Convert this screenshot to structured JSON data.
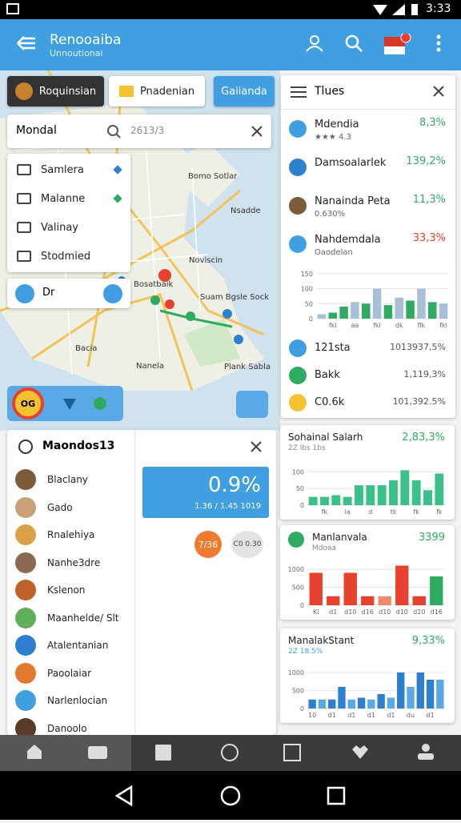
{
  "status": {
    "time": "3:33"
  },
  "appbar": {
    "title": "Renooaiba",
    "subtitle": "Unnoutionai"
  },
  "tabs": [
    "Roquinsian",
    "Pnadenian",
    "Gaiianda"
  ],
  "search": {
    "label": "Mondal",
    "query": "2613/3"
  },
  "menu": [
    "Samlera",
    "Malanne",
    "Valinay",
    "Stodmied"
  ],
  "tool_label": "Dr",
  "map_labels": [
    "Bomo Sotlar",
    "Nsadde",
    "Noviscin",
    "Bosatbaik",
    "Suam Bgsle Sock",
    "Nanela",
    "Bacia",
    "Plank Sabla"
  ],
  "map_control": "OG",
  "places": {
    "title": "Maondos13",
    "items": [
      "Blaclany",
      "Gado",
      "Rnalehiya",
      "Nanhe3dre",
      "Kslenon",
      "Maanhelde/ Slt",
      "Atalentanian",
      "Paoolaiar",
      "Narlenlocian",
      "Danoolo"
    ]
  },
  "stat_card": {
    "value": "0.9%",
    "sub": "1.36 / 1.45 1019"
  },
  "chips": [
    "7/36",
    "C0 0.30"
  ],
  "filters": {
    "title": "Tlues",
    "rows": [
      {
        "name": "Mdendia",
        "sub": "★★★ 4.3",
        "value": "8,3%"
      },
      {
        "name": "Damsoalarlek",
        "sub": "",
        "value": "139,2%"
      },
      {
        "name": "Nanainda Peta",
        "sub": "0.630%",
        "value": "11,3%"
      },
      {
        "name": "Nahdemdala",
        "sub": "Oaodelan",
        "value": "33,3%"
      }
    ],
    "chart": {
      "ylim": [
        0,
        160
      ],
      "yticks": [
        0,
        50,
        100,
        150
      ],
      "categories": [
        null,
        "fkl",
        null,
        "aa",
        null,
        "fkl",
        null,
        "dk",
        null,
        "flk",
        null,
        "fkl"
      ],
      "values": [
        15,
        20,
        40,
        55,
        50,
        100,
        45,
        70,
        60,
        100,
        55,
        50
      ],
      "colors": [
        "#a9bfd6",
        "#2eaa62",
        "#2eaa62",
        "#a9bfd6",
        "#2eaa62",
        "#a9bfd6",
        "#2eaa62",
        "#a9bfd6",
        "#2eaa62",
        "#a9bfd6",
        "#2eaa62",
        "#a9bfd6"
      ]
    },
    "rows2": [
      {
        "name": "121sta",
        "value": "1013937,5%"
      },
      {
        "name": "Bakk",
        "value": "1,119,3%"
      },
      {
        "name": "C0.6k",
        "value": "101,392.5%"
      }
    ]
  },
  "cards": [
    {
      "title": "Sohainal Salarh",
      "sub": "2Z lbs 1bs",
      "value": "2,83,3%",
      "chart": {
        "ylim": [
          0,
          130
        ],
        "yticks": [
          0,
          50,
          100
        ],
        "categories": [
          null,
          "fk",
          null,
          "la",
          null,
          "d",
          null,
          "tk",
          null,
          "fk",
          null,
          "fk"
        ],
        "values": [
          25,
          25,
          30,
          25,
          60,
          60,
          60,
          75,
          105,
          75,
          45,
          95
        ],
        "colors": [
          "#3cc08a",
          "#3cc08a",
          "#3cc08a",
          "#3cc08a",
          "#3cc08a",
          "#3cc08a",
          "#3cc08a",
          "#3cc08a",
          "#3cc08a",
          "#3cc08a",
          "#3cc08a",
          "#3cc08a"
        ]
      }
    },
    {
      "title": "Manlanvala",
      "sub": "Mdoaa",
      "value": "3399",
      "chart": {
        "ylim": [
          0,
          1200
        ],
        "yticks": [
          0,
          500,
          1000
        ],
        "categories": [
          "Ki",
          "d1",
          "d10",
          "d16",
          "d10",
          "d10",
          "d10",
          "d16"
        ],
        "values": [
          900,
          250,
          900,
          250,
          250,
          1100,
          250,
          800
        ],
        "colors": [
          "#e8412e",
          "#e8412e",
          "#e8412e",
          "#e8412e",
          "#f08a6e",
          "#e8412e",
          "#e8412e",
          "#2eaa62"
        ]
      }
    },
    {
      "title": "ManalakStant",
      "sub": "2Z 18.5%",
      "value": "9,33%",
      "chart": {
        "ylim": [
          0,
          1200
        ],
        "yticks": [
          0,
          500,
          1000
        ],
        "categories": [
          "10",
          null,
          "d1",
          null,
          "d1",
          null,
          "d1",
          null,
          "d1",
          null,
          "du",
          null,
          "d1",
          null
        ],
        "values": [
          250,
          250,
          250,
          600,
          250,
          300,
          250,
          400,
          300,
          1000,
          600,
          1000,
          800,
          800
        ],
        "colors": [
          "#2f7fcf",
          "#5aa9e6",
          "#2f7fcf",
          "#2f7fcf",
          "#5aa9e6",
          "#2f7fcf",
          "#5aa9e6",
          "#2f7fcf",
          "#5aa9e6",
          "#2f7fcf",
          "#5aa9e6",
          "#2f7fcf",
          "#2f7fcf",
          "#5aa9e6"
        ]
      }
    }
  ]
}
